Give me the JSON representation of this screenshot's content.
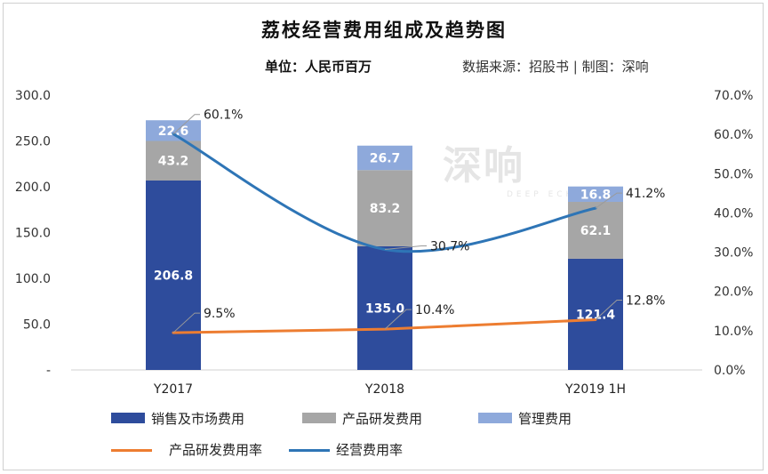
{
  "title": "荔枝经营费用组成及趋势图",
  "unit": "单位：人民币百万",
  "source": "数据来源：招股书 | 制图：深响",
  "watermark": {
    "text": "深响",
    "subtext": "DEEP ECHO"
  },
  "colors": {
    "sales": "#2E4C9C",
    "rnd": "#A6A6A6",
    "admin": "#8EA9DB",
    "rnd_rate": "#ED7D31",
    "opex_rate": "#2E75B6"
  },
  "legend": {
    "sales": "销售及市场费用",
    "rnd": "产品研发费用",
    "admin": "管理费用",
    "rnd_rate": "产品研发费用率",
    "opex_rate": "经营费用率"
  },
  "chart_data": {
    "type": "bar",
    "stacked": true,
    "categories": [
      "Y2017",
      "Y2018",
      "Y2019 1H"
    ],
    "series": [
      {
        "name": "销售及市场费用",
        "values": [
          206.8,
          135.0,
          121.4
        ],
        "labels": [
          "206.8",
          "135.0",
          "121.4"
        ]
      },
      {
        "name": "产品研发费用",
        "values": [
          43.2,
          83.2,
          62.1
        ],
        "labels": [
          "43.2",
          "83.2",
          "62.1"
        ]
      },
      {
        "name": "管理费用",
        "values": [
          22.6,
          26.7,
          16.8
        ],
        "labels": [
          "22.6",
          "26.7",
          "16.8"
        ]
      }
    ],
    "line_series": [
      {
        "name": "产品研发费用率",
        "axis": "right",
        "values": [
          9.5,
          10.4,
          12.8
        ],
        "labels": [
          "9.5%",
          "10.4%",
          "12.8%"
        ]
      },
      {
        "name": "经营费用率",
        "axis": "right",
        "values": [
          60.1,
          30.7,
          41.2
        ],
        "labels": [
          "60.1%",
          "30.7%",
          "41.2%"
        ]
      }
    ],
    "y_left": {
      "ylim": [
        0,
        300
      ],
      "ticks": [
        "-",
        "50.0",
        "100.0",
        "150.0",
        "200.0",
        "250.0",
        "300.0"
      ]
    },
    "y_right": {
      "ylim": [
        0,
        70
      ],
      "ticks": [
        "0.0%",
        "10.0%",
        "20.0%",
        "30.0%",
        "40.0%",
        "50.0%",
        "60.0%",
        "70.0%"
      ]
    },
    "grid": false,
    "legend_position": "bottom"
  }
}
